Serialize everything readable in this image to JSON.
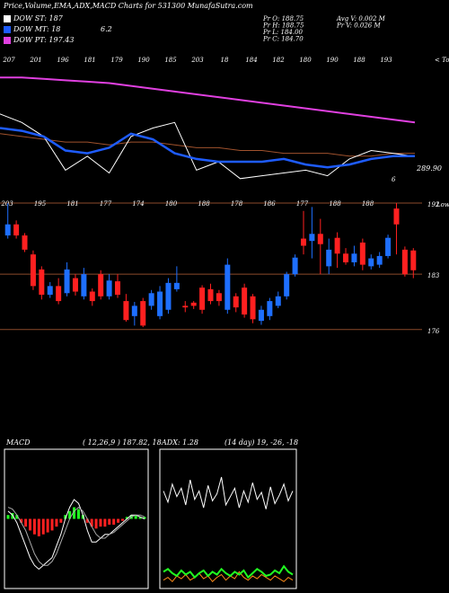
{
  "header": {
    "title": "Price,Volume,EMA,ADX,MACD Charts for 531300  MunafaSutra.com",
    "legend": [
      {
        "label": "DOW ST: 187",
        "color": "#ffffff"
      },
      {
        "label": "DOW MT: 18",
        "extra": "6.2",
        "color": "#1e5cff"
      },
      {
        "label": "DOW PT: 197.43",
        "color": "#e040e0"
      }
    ],
    "info_left": [
      "Pr  O: 188.75",
      "Pr  H: 188.75",
      "Pr  L: 184.00",
      "Pr  C: 184.70"
    ],
    "info_right": [
      "Avg V: 0.002  M",
      "Pr  V: 0.026  M"
    ]
  },
  "chart_data": [
    {
      "type": "line",
      "top_labels": [
        "207",
        "201",
        "196",
        "181",
        "179",
        "190",
        "185",
        "203",
        "18",
        "184",
        "182",
        "180",
        "190",
        "188",
        "193"
      ],
      "tops_label": "< Tops",
      "last_label": {
        "value": 289.9,
        "label": "289.90"
      },
      "note": "6",
      "ylim": [
        280,
        320
      ],
      "series": [
        {
          "color": "#e040e0",
          "width": 2,
          "values": [
            318,
            318,
            317.5,
            317,
            316.5,
            316,
            315,
            314,
            313,
            312,
            311,
            310,
            309,
            308,
            307,
            306,
            305,
            304,
            303,
            302
          ]
        },
        {
          "color": "#a0522d",
          "width": 1,
          "values": [
            298,
            297,
            296,
            295,
            295,
            294,
            295,
            295,
            294,
            293,
            293,
            292,
            292,
            291,
            291,
            291,
            290,
            290,
            291,
            291
          ]
        },
        {
          "color": "#ffffff",
          "width": 1,
          "values": [
            305,
            302,
            297,
            285,
            290,
            284,
            297,
            300,
            302,
            285,
            288,
            282,
            283,
            284,
            285,
            283,
            289,
            292,
            291,
            289.9
          ]
        },
        {
          "color": "#1e5cff",
          "width": 2.5,
          "values": [
            300,
            299,
            297,
            292,
            291,
            293,
            298,
            296,
            291,
            289,
            288,
            288,
            288,
            289,
            287,
            286,
            287,
            289,
            290,
            290
          ]
        }
      ]
    },
    {
      "type": "candlestick",
      "peak_labels": [
        "203",
        "195",
        "181",
        "177",
        "174",
        "180",
        "188",
        "178",
        "186",
        "177",
        "188",
        "188"
      ],
      "lows_label": "Lows",
      "up_color": "#1e6fff",
      "down_color": "#ff2020",
      "grid_color": "#8b4a2b",
      "ylim": [
        173.93,
        194.95
      ],
      "yticks": [
        176,
        183,
        192
      ],
      "open": [
        187.9,
        189.3,
        187.9,
        185.5,
        183.6,
        180.4,
        181.5,
        180.6,
        182.5,
        180.2,
        180.8,
        183.0,
        180.2,
        182.1,
        179.6,
        177.7,
        179.6,
        179.0,
        177.7,
        178.5,
        181.1,
        179.0,
        179.4,
        181.3,
        181.1,
        180.6,
        178.5,
        180.2,
        181.3,
        180.2,
        177.1,
        177.7,
        179.0,
        180.2,
        183.0,
        187.5,
        187.2,
        188.1,
        184.0,
        187.6,
        185.6,
        184.5,
        187.0,
        184.0,
        184.2,
        185.3,
        191.3,
        186.1,
        186.0
      ],
      "high": [
        192.0,
        189.8,
        188.2,
        186.0,
        184.0,
        182.0,
        182.5,
        184.5,
        183.0,
        183.8,
        181.2,
        183.5,
        183.0,
        183.0,
        180.5,
        179.5,
        180.0,
        181.0,
        181.5,
        182.5,
        184.0,
        179.6,
        179.6,
        181.6,
        181.8,
        181.0,
        185.0,
        180.6,
        181.8,
        180.5,
        179.0,
        180.0,
        180.8,
        183.3,
        185.5,
        191.0,
        191.5,
        190.0,
        187.5,
        188.3,
        186.3,
        186.6,
        187.5,
        185.5,
        185.8,
        188.0,
        192.0,
        186.5,
        186.3
      ],
      "low": [
        187.5,
        187.5,
        185.8,
        181.0,
        179.8,
        180.0,
        179.2,
        180.2,
        180.3,
        179.8,
        179.0,
        179.8,
        179.8,
        180.0,
        177.0,
        176.5,
        176.3,
        178.5,
        177.3,
        178.0,
        180.8,
        178.2,
        178.6,
        178.0,
        179.2,
        179.0,
        178.0,
        178.2,
        177.5,
        176.8,
        176.6,
        177.2,
        178.7,
        179.8,
        182.7,
        185.5,
        185.0,
        183.0,
        183.0,
        183.8,
        184.2,
        184.0,
        183.5,
        183.6,
        183.8,
        185.0,
        185.5,
        182.7,
        182.5
      ],
      "close": [
        189.3,
        187.9,
        186.1,
        181.5,
        180.4,
        181.5,
        179.6,
        183.6,
        180.8,
        183.0,
        179.6,
        180.2,
        182.2,
        180.4,
        177.2,
        179.0,
        176.5,
        180.6,
        180.8,
        181.9,
        181.9,
        178.8,
        179.0,
        178.5,
        179.6,
        179.6,
        184.2,
        178.8,
        177.9,
        177.3,
        178.5,
        179.6,
        180.2,
        183.0,
        185.1,
        186.6,
        188.1,
        186.8,
        186.1,
        185.6,
        184.5,
        185.6,
        184.2,
        185.0,
        185.3,
        187.6,
        189.3,
        183.0,
        183.5
      ]
    },
    {
      "type": "macd",
      "label": "MACD",
      "params": "( 12,26,9 ) 187.82, 18",
      "ylim": [
        -18,
        18
      ],
      "series": [
        {
          "type": "bar",
          "up_color": "#20ff20",
          "down_color": "#ff2020",
          "values": [
            1,
            1.5,
            1,
            -1,
            -2,
            -3,
            -4,
            -4.5,
            -4,
            -3.5,
            -3,
            -2,
            -1,
            1,
            2,
            3,
            2.5,
            1,
            -1,
            -2,
            -2.5,
            -2,
            -2,
            -1.5,
            -1.5,
            -1,
            -0.5,
            0.5,
            1,
            1,
            0.5,
            0.5
          ]
        },
        {
          "type": "line",
          "color": "#ffffff",
          "values": [
            2,
            1,
            -1,
            -4,
            -7,
            -10,
            -12,
            -13,
            -12,
            -11,
            -10,
            -7,
            -4,
            0,
            3,
            5,
            4,
            1,
            -3,
            -6,
            -6,
            -5,
            -4,
            -4,
            -3,
            -2,
            -1,
            0,
            1,
            1,
            0.5,
            0
          ]
        },
        {
          "type": "line",
          "color": "#aaaaaa",
          "values": [
            3,
            2.5,
            1,
            -1,
            -3,
            -6,
            -9,
            -11,
            -12,
            -12,
            -11,
            -9,
            -6,
            -3,
            0,
            2,
            3,
            2,
            0,
            -2,
            -4,
            -5,
            -5,
            -4,
            -3.5,
            -2.5,
            -1.5,
            -0.5,
            0.5,
            1,
            1,
            0.5
          ]
        }
      ]
    },
    {
      "type": "adx",
      "label": "ADX: 1.28",
      "params": "(14 day) 19, -26, -18",
      "ylim": [
        0,
        100
      ],
      "series": [
        {
          "type": "line",
          "color": "#ffffff",
          "values": [
            70,
            62,
            75,
            66,
            72,
            60,
            78,
            64,
            70,
            58,
            74,
            63,
            68,
            80,
            60,
            66,
            72,
            58,
            70,
            62,
            76,
            64,
            69,
            57,
            73,
            61,
            67,
            75,
            63,
            70
          ]
        },
        {
          "type": "line",
          "color": "#ff8c1a",
          "values": [
            6,
            8,
            5,
            9,
            7,
            10,
            6,
            8,
            11,
            7,
            9,
            5,
            8,
            10,
            6,
            9,
            7,
            12,
            8,
            6,
            9,
            7,
            10,
            8,
            6,
            9,
            7,
            5,
            8,
            6
          ]
        },
        {
          "type": "line",
          "color": "#20ff20",
          "width": 2,
          "values": [
            12,
            14,
            11,
            9,
            13,
            10,
            12,
            8,
            11,
            13,
            9,
            12,
            10,
            14,
            11,
            9,
            12,
            10,
            13,
            8,
            11,
            14,
            12,
            9,
            10,
            13,
            11,
            16,
            12,
            10
          ]
        }
      ]
    }
  ]
}
